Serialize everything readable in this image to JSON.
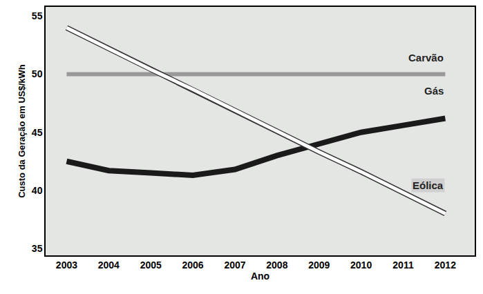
{
  "chart_data": {
    "type": "line",
    "x_label": "Ano",
    "y_label": "Custo da Geração em US$/kWh",
    "x": [
      2003,
      2004,
      2005,
      2006,
      2007,
      2008,
      2009,
      2010,
      2011,
      2012
    ],
    "series": [
      {
        "name": "Carvão",
        "color": "#999999",
        "values": [
          50,
          50,
          50,
          50,
          50,
          50,
          50,
          50,
          50,
          50
        ]
      },
      {
        "name": "Gás",
        "color": "#1a1a1a",
        "values": [
          42.5,
          41.7,
          41.5,
          41.3,
          41.8,
          43.0,
          44.0,
          45.0,
          45.6,
          46.2
        ]
      },
      {
        "name": "Eólica",
        "color": "#ffffff",
        "values": [
          54,
          52.2,
          50.4,
          48.7,
          46.9,
          45.1,
          43.3,
          41.6,
          39.8,
          38
        ]
      }
    ],
    "xlim": [
      2002.5,
      2012.7
    ],
    "xticks": [
      2003,
      2004,
      2005,
      2006,
      2007,
      2008,
      2009,
      2010,
      2011,
      2012
    ],
    "ylim": [
      34.4,
      55.8
    ],
    "yticks": [
      35,
      40,
      45,
      50,
      55
    ],
    "grid": false
  }
}
